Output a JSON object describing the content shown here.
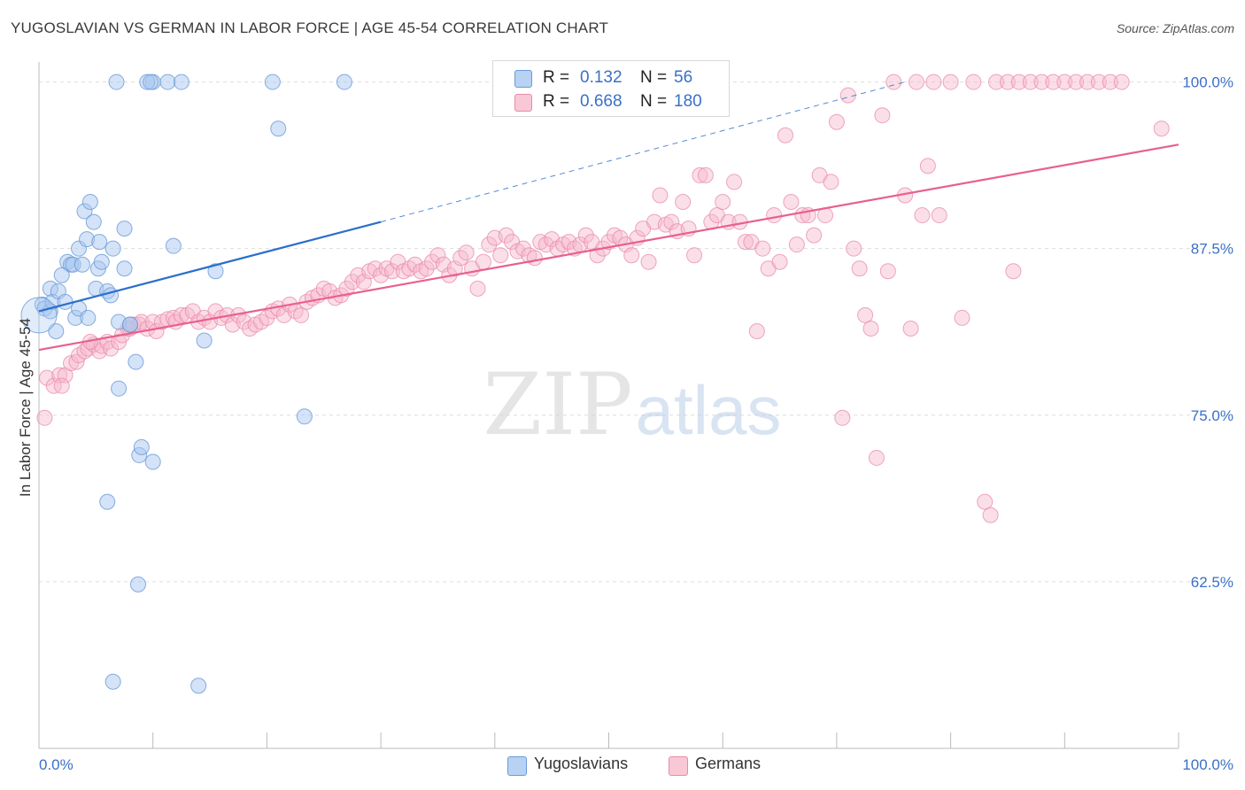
{
  "title": "YUGOSLAVIAN VS GERMAN IN LABOR FORCE | AGE 45-54 CORRELATION CHART",
  "source": "Source: ZipAtlas.com",
  "watermark": {
    "zip": "ZIP",
    "atlas": "atlas"
  },
  "stats": {
    "yugoslavians": {
      "r_label": "R =",
      "r_value": "0.132",
      "n_label": "N =",
      "n_value": "56"
    },
    "germans": {
      "r_label": "R =",
      "r_value": "0.668",
      "n_label": "N =",
      "n_value": "180"
    }
  },
  "legend": {
    "yugoslavians": "Yugoslavians",
    "germans": "Germans"
  },
  "colors": {
    "blue_fill": "#a9c8f0",
    "blue_stroke": "#6a9ad8",
    "blue_line": "#2a6fcc",
    "pink_fill": "#f7b9cc",
    "pink_stroke": "#e88aa8",
    "pink_line": "#e8608e",
    "tick_label": "#3a70c8",
    "grid": "#dddddd"
  },
  "chart_data": {
    "type": "scatter",
    "title": "YUGOSLAVIAN VS GERMAN IN LABOR FORCE | AGE 45-54 CORRELATION CHART",
    "xlabel": "",
    "ylabel": "In Labor Force | Age 45-54",
    "xlim": [
      0,
      100
    ],
    "ylim": [
      50,
      101.5
    ],
    "x_tick_labels": [
      "0.0%",
      "100.0%"
    ],
    "y_ticks": [
      62.5,
      75.0,
      87.5,
      100.0
    ],
    "y_tick_labels": [
      "62.5%",
      "75.0%",
      "87.5%",
      "100.0%"
    ],
    "grid": true,
    "legend_position": "bottom-center",
    "series": [
      {
        "name": "Yugoslavians",
        "trendline": {
          "x": [
            0,
            30
          ],
          "y": [
            82.8,
            89.5
          ],
          "dashed_extension_to": [
            76,
            100
          ]
        },
        "points": [
          [
            0.3,
            83.3
          ],
          [
            0.5,
            83.0
          ],
          [
            1.0,
            84.5
          ],
          [
            1.0,
            82.8
          ],
          [
            1.2,
            83.5
          ],
          [
            1.5,
            81.3
          ],
          [
            1.7,
            84.3
          ],
          [
            2.0,
            85.5
          ],
          [
            2.3,
            83.5
          ],
          [
            2.5,
            86.5
          ],
          [
            2.8,
            86.3
          ],
          [
            3.0,
            86.3
          ],
          [
            3.2,
            82.3
          ],
          [
            3.5,
            87.5
          ],
          [
            3.5,
            83.0
          ],
          [
            3.8,
            86.3
          ],
          [
            4.0,
            90.3
          ],
          [
            4.2,
            88.2
          ],
          [
            4.3,
            82.3
          ],
          [
            4.5,
            91.0
          ],
          [
            4.8,
            89.5
          ],
          [
            5.0,
            84.5
          ],
          [
            5.2,
            86.0
          ],
          [
            5.3,
            88.0
          ],
          [
            5.5,
            86.5
          ],
          [
            6.0,
            84.3
          ],
          [
            6.3,
            84.0
          ],
          [
            6.5,
            87.5
          ],
          [
            6.5,
            55.0
          ],
          [
            7.0,
            77.0
          ],
          [
            7.0,
            82.0
          ],
          [
            7.5,
            89.0
          ],
          [
            7.5,
            86.0
          ],
          [
            8.0,
            81.8
          ],
          [
            8.5,
            79.0
          ],
          [
            8.7,
            62.3
          ],
          [
            8.8,
            72.0
          ],
          [
            9.0,
            72.6
          ],
          [
            10.0,
            71.5
          ],
          [
            10.0,
            100.0
          ],
          [
            11.3,
            100.0
          ],
          [
            12.5,
            100.0
          ],
          [
            6.0,
            68.5
          ],
          [
            6.8,
            100.0
          ],
          [
            9.5,
            100.0
          ],
          [
            9.8,
            100.0
          ],
          [
            11.8,
            87.7
          ],
          [
            14.5,
            80.6
          ],
          [
            14.0,
            54.7
          ],
          [
            15.5,
            85.8
          ],
          [
            20.5,
            100.0
          ],
          [
            21.0,
            96.5
          ],
          [
            23.3,
            74.9
          ],
          [
            26.8,
            100.0
          ],
          [
            8.0,
            81.8
          ],
          [
            0.0,
            82.5
          ]
        ]
      },
      {
        "name": "Germans",
        "trendline": {
          "x": [
            0,
            100
          ],
          "y": [
            79.9,
            95.3
          ]
        },
        "points": [
          [
            0.5,
            74.8
          ],
          [
            0.7,
            77.8
          ],
          [
            1.3,
            77.2
          ],
          [
            1.8,
            78.0
          ],
          [
            2.3,
            78.0
          ],
          [
            2.8,
            78.9
          ],
          [
            3.3,
            79.0
          ],
          [
            3.5,
            79.5
          ],
          [
            4.0,
            79.8
          ],
          [
            4.3,
            80.0
          ],
          [
            4.8,
            80.3
          ],
          [
            5.3,
            79.8
          ],
          [
            5.5,
            80.2
          ],
          [
            6.0,
            80.5
          ],
          [
            6.3,
            80.0
          ],
          [
            7.0,
            80.5
          ],
          [
            7.3,
            81.0
          ],
          [
            7.8,
            81.5
          ],
          [
            8.0,
            81.5
          ],
          [
            8.3,
            81.8
          ],
          [
            8.8,
            81.8
          ],
          [
            9.0,
            82.0
          ],
          [
            9.5,
            81.5
          ],
          [
            10.0,
            82.0
          ],
          [
            10.3,
            81.3
          ],
          [
            10.8,
            82.0
          ],
          [
            11.3,
            82.2
          ],
          [
            11.8,
            82.3
          ],
          [
            12.0,
            82.0
          ],
          [
            12.5,
            82.5
          ],
          [
            13.0,
            82.5
          ],
          [
            13.5,
            82.8
          ],
          [
            14.0,
            82.0
          ],
          [
            14.5,
            82.3
          ],
          [
            15.0,
            82.0
          ],
          [
            15.5,
            82.8
          ],
          [
            16.0,
            82.3
          ],
          [
            16.5,
            82.5
          ],
          [
            17.0,
            81.8
          ],
          [
            17.5,
            82.5
          ],
          [
            18.0,
            82.0
          ],
          [
            18.5,
            81.5
          ],
          [
            19.0,
            81.8
          ],
          [
            19.5,
            82.0
          ],
          [
            20.0,
            82.3
          ],
          [
            20.5,
            82.8
          ],
          [
            21.0,
            83.0
          ],
          [
            21.5,
            82.5
          ],
          [
            22.0,
            83.3
          ],
          [
            22.5,
            82.8
          ],
          [
            23.0,
            82.5
          ],
          [
            23.5,
            83.5
          ],
          [
            24.0,
            83.8
          ],
          [
            24.5,
            84.0
          ],
          [
            25.0,
            84.5
          ],
          [
            25.5,
            84.3
          ],
          [
            26.0,
            83.8
          ],
          [
            26.5,
            84.0
          ],
          [
            27.0,
            84.5
          ],
          [
            27.5,
            85.0
          ],
          [
            28.0,
            85.5
          ],
          [
            28.5,
            85.0
          ],
          [
            29.0,
            85.8
          ],
          [
            29.5,
            86.0
          ],
          [
            30.0,
            85.5
          ],
          [
            30.5,
            86.0
          ],
          [
            31.0,
            85.8
          ],
          [
            31.5,
            86.5
          ],
          [
            32.0,
            85.8
          ],
          [
            32.5,
            86.0
          ],
          [
            33.0,
            86.3
          ],
          [
            33.5,
            85.8
          ],
          [
            34.0,
            86.0
          ],
          [
            34.5,
            86.5
          ],
          [
            35.0,
            87.0
          ],
          [
            35.5,
            86.3
          ],
          [
            36.0,
            85.5
          ],
          [
            36.5,
            86.0
          ],
          [
            37.0,
            86.8
          ],
          [
            37.5,
            87.2
          ],
          [
            38.0,
            86.0
          ],
          [
            38.5,
            84.5
          ],
          [
            39.0,
            86.5
          ],
          [
            39.5,
            87.8
          ],
          [
            40.0,
            88.3
          ],
          [
            40.5,
            87.0
          ],
          [
            41.0,
            88.5
          ],
          [
            41.5,
            88.0
          ],
          [
            42.0,
            87.3
          ],
          [
            42.5,
            87.5
          ],
          [
            43.0,
            87.0
          ],
          [
            43.5,
            86.8
          ],
          [
            44.0,
            88.0
          ],
          [
            44.5,
            87.8
          ],
          [
            45.0,
            88.2
          ],
          [
            45.5,
            87.5
          ],
          [
            46.0,
            87.8
          ],
          [
            46.5,
            88.0
          ],
          [
            47.0,
            87.5
          ],
          [
            47.5,
            87.8
          ],
          [
            48.0,
            88.5
          ],
          [
            48.5,
            88.0
          ],
          [
            49.0,
            87.0
          ],
          [
            49.5,
            87.5
          ],
          [
            50.0,
            88.0
          ],
          [
            50.5,
            88.5
          ],
          [
            51.0,
            88.3
          ],
          [
            51.5,
            87.8
          ],
          [
            52.0,
            87.0
          ],
          [
            52.5,
            88.3
          ],
          [
            53.0,
            89.0
          ],
          [
            53.5,
            86.5
          ],
          [
            54.0,
            89.5
          ],
          [
            54.5,
            91.5
          ],
          [
            55.0,
            89.3
          ],
          [
            55.5,
            89.5
          ],
          [
            56.0,
            88.8
          ],
          [
            56.5,
            91.0
          ],
          [
            57.0,
            89.0
          ],
          [
            57.5,
            87.0
          ],
          [
            58.0,
            93.0
          ],
          [
            58.5,
            93.0
          ],
          [
            59.0,
            89.5
          ],
          [
            59.5,
            90.0
          ],
          [
            60.0,
            91.0
          ],
          [
            60.5,
            89.5
          ],
          [
            61.0,
            92.5
          ],
          [
            61.5,
            89.5
          ],
          [
            62.0,
            88.0
          ],
          [
            62.5,
            88.0
          ],
          [
            63.0,
            81.3
          ],
          [
            63.5,
            87.5
          ],
          [
            64.0,
            86.0
          ],
          [
            64.5,
            90.0
          ],
          [
            65.0,
            86.5
          ],
          [
            65.5,
            96.0
          ],
          [
            66.0,
            91.0
          ],
          [
            66.5,
            87.8
          ],
          [
            67.0,
            90.0
          ],
          [
            67.5,
            90.0
          ],
          [
            68.0,
            88.5
          ],
          [
            68.5,
            93.0
          ],
          [
            69.0,
            90.0
          ],
          [
            69.5,
            92.5
          ],
          [
            70.0,
            97.0
          ],
          [
            70.5,
            74.8
          ],
          [
            71.0,
            99.0
          ],
          [
            71.5,
            87.5
          ],
          [
            72.0,
            86.0
          ],
          [
            72.5,
            82.5
          ],
          [
            73.0,
            81.5
          ],
          [
            73.5,
            71.8
          ],
          [
            74.0,
            97.5
          ],
          [
            74.5,
            85.8
          ],
          [
            75.0,
            100.0
          ],
          [
            76.0,
            91.5
          ],
          [
            76.5,
            81.5
          ],
          [
            77.0,
            100.0
          ],
          [
            77.5,
            90.0
          ],
          [
            78.0,
            93.7
          ],
          [
            78.5,
            100.0
          ],
          [
            79.0,
            90.0
          ],
          [
            80.0,
            100.0
          ],
          [
            81.0,
            82.3
          ],
          [
            82.0,
            100.0
          ],
          [
            83.0,
            68.5
          ],
          [
            83.5,
            67.5
          ],
          [
            84.0,
            100.0
          ],
          [
            85.0,
            100.0
          ],
          [
            85.5,
            85.8
          ],
          [
            86.0,
            100.0
          ],
          [
            87.0,
            100.0
          ],
          [
            88.0,
            100.0
          ],
          [
            89.0,
            100.0
          ],
          [
            90.0,
            100.0
          ],
          [
            91.0,
            100.0
          ],
          [
            92.0,
            100.0
          ],
          [
            93.0,
            100.0
          ],
          [
            94.0,
            100.0
          ],
          [
            95.0,
            100.0
          ],
          [
            98.5,
            96.5
          ],
          [
            2.0,
            77.2
          ],
          [
            4.5,
            80.5
          ]
        ]
      }
    ]
  }
}
